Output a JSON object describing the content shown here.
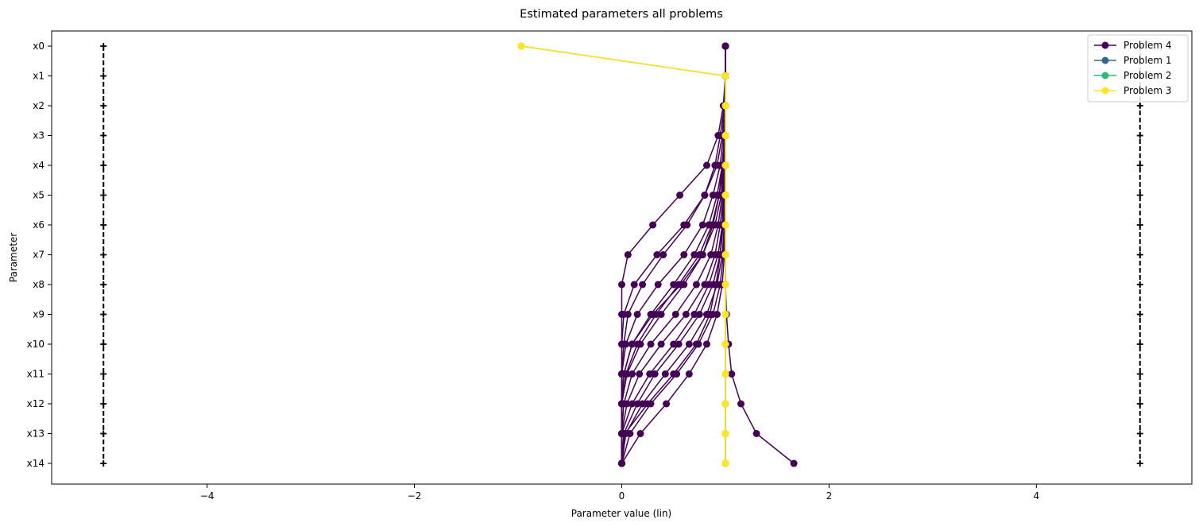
{
  "chart_data": {
    "type": "line",
    "title": "Estimated parameters all problems",
    "xlabel": "Parameter value (lin)",
    "ylabel": "Parameter",
    "xlim": [
      -5.5,
      5.5
    ],
    "x_ticks": [
      -4,
      -2,
      0,
      2,
      4
    ],
    "x_tick_labels": [
      "−4",
      "−2",
      "0",
      "2",
      "4"
    ],
    "categories": [
      "x0",
      "x1",
      "x2",
      "x3",
      "x4",
      "x5",
      "x6",
      "x7",
      "x8",
      "x9",
      "x10",
      "x11",
      "x12",
      "x13",
      "x14"
    ],
    "legend_position": "top-right",
    "grid": false,
    "bounds": {
      "lower": -5,
      "upper": 5,
      "color": "#000000",
      "style": "dashed"
    },
    "series": [
      {
        "name": "Problem 4",
        "color": "#440154",
        "runs": [
          [
            1.0,
            1.0,
            1.0,
            1.0,
            1.0,
            1.0,
            1.0,
            1.0,
            1.0,
            1.0,
            1.0,
            1.0,
            1.0,
            1.0,
            1.0
          ],
          [
            1.0,
            1.0,
            1.0,
            1.0,
            1.0,
            1.0,
            1.0,
            1.0,
            1.0,
            1.01,
            1.03,
            1.06,
            1.15,
            1.3,
            1.66
          ],
          [
            1.0,
            1.0,
            1.0,
            1.0,
            0.99,
            0.98,
            0.97,
            0.95,
            0.91,
            0.85,
            0.72,
            0.5,
            0.25,
            0.03,
            0.0
          ],
          [
            1.0,
            1.0,
            1.0,
            0.99,
            0.97,
            0.94,
            0.88,
            0.78,
            0.57,
            0.3,
            0.1,
            0.02,
            0.0,
            0.0,
            0.0
          ],
          [
            1.0,
            1.0,
            0.99,
            0.97,
            0.92,
            0.8,
            0.6,
            0.34,
            0.12,
            0.02,
            0.0,
            0.0,
            0.0,
            0.0,
            0.0
          ],
          [
            1.0,
            1.0,
            0.98,
            0.93,
            0.82,
            0.56,
            0.3,
            0.06,
            0.0,
            0.0,
            0.0,
            0.0,
            0.0,
            0.0,
            0.0
          ],
          [
            1.0,
            1.0,
            0.99,
            0.95,
            0.9,
            0.8,
            0.63,
            0.4,
            0.2,
            0.06,
            0.02,
            0.0,
            0.0,
            0.0,
            0.0
          ],
          [
            1.0,
            1.0,
            1.0,
            0.98,
            0.95,
            0.88,
            0.78,
            0.6,
            0.35,
            0.15,
            0.04,
            0.0,
            0.0,
            0.0,
            0.0
          ],
          [
            1.0,
            1.0,
            1.0,
            0.99,
            0.97,
            0.92,
            0.84,
            0.7,
            0.5,
            0.28,
            0.1,
            0.02,
            0.0,
            0.0,
            0.0
          ],
          [
            1.0,
            1.0,
            1.0,
            1.0,
            0.98,
            0.96,
            0.9,
            0.78,
            0.6,
            0.38,
            0.18,
            0.05,
            0.0,
            0.0,
            0.0
          ],
          [
            1.0,
            1.0,
            1.0,
            0.99,
            0.98,
            0.94,
            0.87,
            0.75,
            0.55,
            0.33,
            0.15,
            0.04,
            0.0,
            0.0,
            0.0
          ],
          [
            1.0,
            1.0,
            1.0,
            1.0,
            0.99,
            0.97,
            0.93,
            0.86,
            0.72,
            0.52,
            0.28,
            0.1,
            0.02,
            0.0,
            0.0
          ],
          [
            1.0,
            1.0,
            1.0,
            1.0,
            0.99,
            0.98,
            0.95,
            0.9,
            0.8,
            0.62,
            0.38,
            0.17,
            0.05,
            0.0,
            0.0
          ],
          [
            1.0,
            1.0,
            1.0,
            1.0,
            1.0,
            0.99,
            0.97,
            0.93,
            0.84,
            0.7,
            0.5,
            0.27,
            0.1,
            0.0,
            0.0
          ],
          [
            1.0,
            1.0,
            1.0,
            1.0,
            1.0,
            0.99,
            0.98,
            0.95,
            0.88,
            0.75,
            0.55,
            0.32,
            0.15,
            0.02,
            0.0
          ],
          [
            1.0,
            1.0,
            1.0,
            1.0,
            1.0,
            1.0,
            0.99,
            0.97,
            0.92,
            0.82,
            0.65,
            0.42,
            0.2,
            0.04,
            0.0
          ],
          [
            1.0,
            1.0,
            1.0,
            1.0,
            1.0,
            1.0,
            0.99,
            0.98,
            0.95,
            0.88,
            0.74,
            0.53,
            0.28,
            0.08,
            0.0
          ],
          [
            1.0,
            1.0,
            1.0,
            1.0,
            1.0,
            1.0,
            1.0,
            0.99,
            0.97,
            0.92,
            0.82,
            0.65,
            0.43,
            0.18,
            0.0
          ]
        ]
      },
      {
        "name": "Problem 1",
        "color": "#31688e",
        "runs": [
          [
            -0.97,
            1.0,
            1.0,
            1.0,
            1.0,
            1.0,
            1.0,
            1.0,
            1.0,
            1.0,
            1.0,
            1.0,
            1.0,
            1.0,
            1.0
          ]
        ]
      },
      {
        "name": "Problem 2",
        "color": "#35b779",
        "runs": [
          [
            -0.97,
            1.0,
            1.0,
            1.0,
            1.0,
            1.0,
            1.0,
            1.0,
            1.0,
            1.0,
            1.0,
            1.0,
            1.0,
            1.0,
            1.0
          ]
        ]
      },
      {
        "name": "Problem 3",
        "color": "#fde725",
        "runs": [
          [
            -0.97,
            1.0,
            1.0,
            1.0,
            1.0,
            1.0,
            1.0,
            1.0,
            1.0,
            1.0,
            1.0,
            1.0,
            1.0,
            1.0,
            1.0
          ],
          [
            -0.97,
            1.0,
            1.0,
            1.0,
            1.0,
            1.0,
            1.0,
            1.0,
            1.0,
            1.0,
            1.0,
            1.0,
            1.0,
            1.0,
            1.0
          ]
        ]
      }
    ],
    "legend_order": [
      "Problem 4",
      "Problem 1",
      "Problem 2",
      "Problem 3"
    ]
  }
}
